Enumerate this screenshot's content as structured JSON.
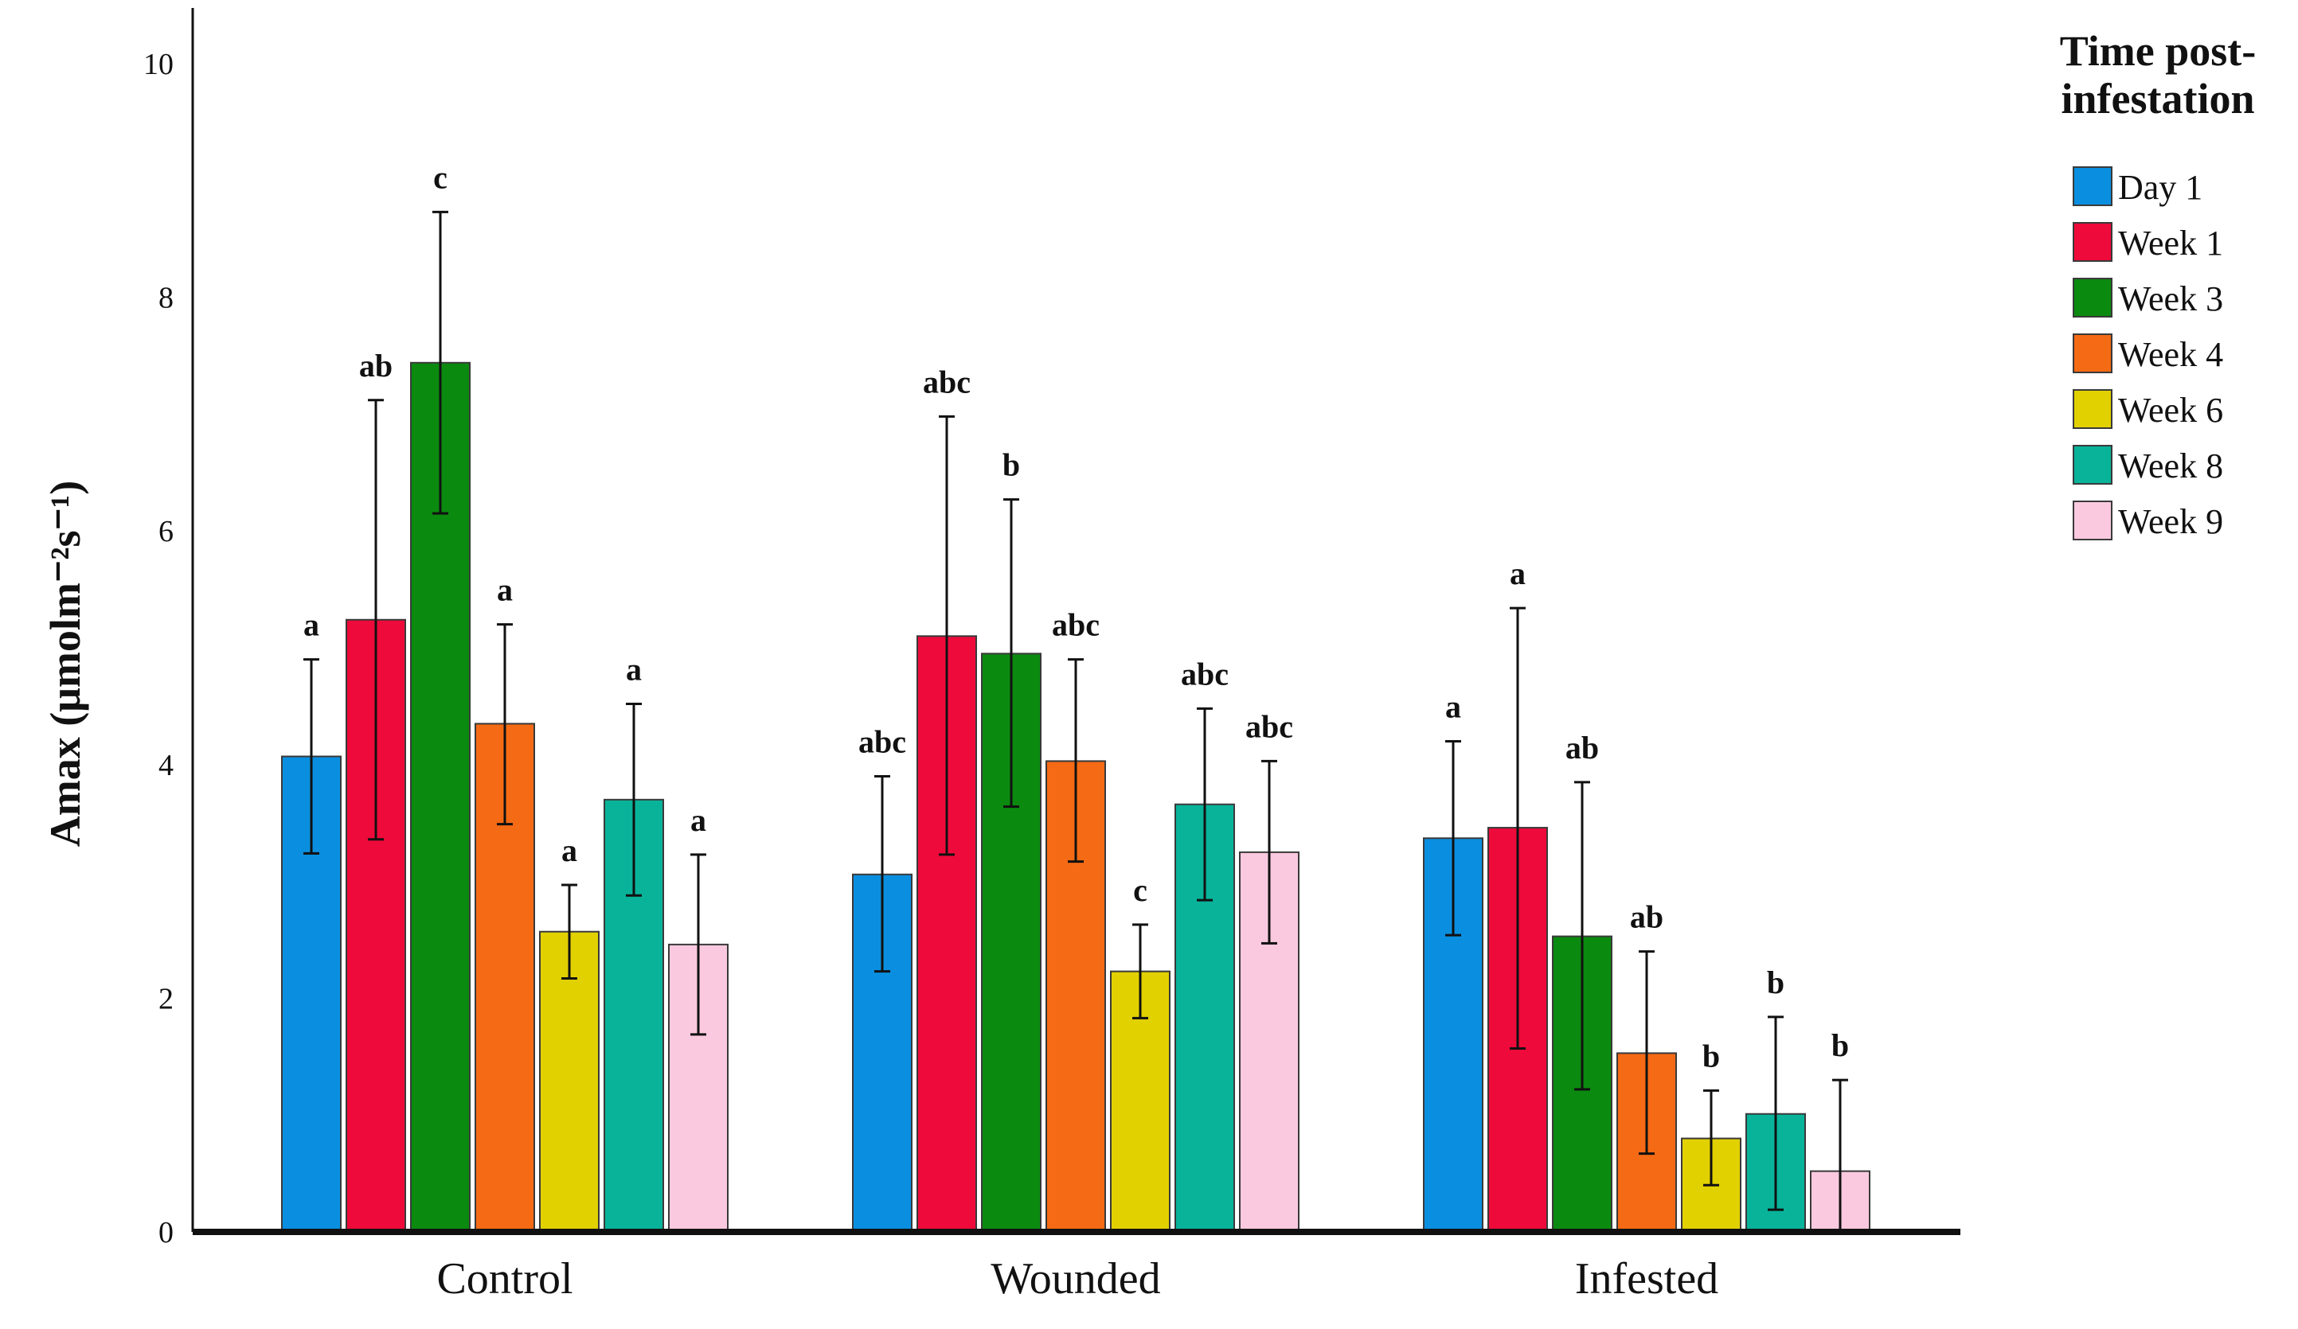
{
  "chart_data": {
    "type": "bar",
    "ylabel": "Amax (μmolm⁻²s⁻¹)",
    "xlabel": "",
    "ylim": [
      0,
      10
    ],
    "yticks": [
      0,
      2,
      4,
      6,
      8,
      10
    ],
    "categories": [
      "Control",
      "Wounded",
      "Infested"
    ],
    "legend_title": [
      "Time post-",
      "infestation"
    ],
    "legend_position": "top-right",
    "grid": false,
    "series": [
      {
        "name": "Day 1",
        "color": "#0a8fe0",
        "values": [
          4.07,
          3.06,
          3.37
        ],
        "err_low": [
          3.24,
          2.23,
          2.54
        ],
        "err_high": [
          4.9,
          3.9,
          4.2
        ],
        "letters": [
          "a",
          "abc",
          "a"
        ]
      },
      {
        "name": "Week 1",
        "color": "#ee0a3a",
        "values": [
          5.24,
          5.1,
          3.46
        ],
        "err_low": [
          3.36,
          3.23,
          1.57
        ],
        "err_high": [
          7.12,
          6.98,
          5.34
        ],
        "letters": [
          "ab",
          "abc",
          "a"
        ]
      },
      {
        "name": "Week 3",
        "color": "#0b8a10",
        "values": [
          7.44,
          4.95,
          2.53
        ],
        "err_low": [
          6.15,
          3.64,
          1.22
        ],
        "err_high": [
          8.73,
          6.27,
          3.85
        ],
        "letters": [
          "c",
          "b",
          "ab"
        ]
      },
      {
        "name": "Week 4",
        "color": "#f56a14",
        "values": [
          4.35,
          4.03,
          1.53
        ],
        "err_low": [
          3.49,
          3.17,
          0.67
        ],
        "err_high": [
          5.2,
          4.9,
          2.4
        ],
        "letters": [
          "a",
          "abc",
          "ab"
        ]
      },
      {
        "name": "Week 6",
        "color": "#e2d100",
        "values": [
          2.57,
          2.23,
          0.8
        ],
        "err_low": [
          2.17,
          1.83,
          0.4
        ],
        "err_high": [
          2.97,
          2.63,
          1.21
        ],
        "letters": [
          "a",
          "c",
          "b"
        ]
      },
      {
        "name": "Week 8",
        "color": "#08b39a",
        "values": [
          3.7,
          3.66,
          1.01
        ],
        "err_low": [
          2.88,
          2.84,
          0.19
        ],
        "err_high": [
          4.52,
          4.48,
          1.84
        ],
        "letters": [
          "a",
          "abc",
          "b"
        ]
      },
      {
        "name": "Week 9",
        "color": "#fbc9df",
        "values": [
          2.46,
          3.25,
          0.52
        ],
        "err_low": [
          1.69,
          2.47,
          -0.27
        ],
        "err_high": [
          3.23,
          4.03,
          1.3
        ],
        "letters": [
          "a",
          "abc",
          "b"
        ]
      }
    ]
  }
}
